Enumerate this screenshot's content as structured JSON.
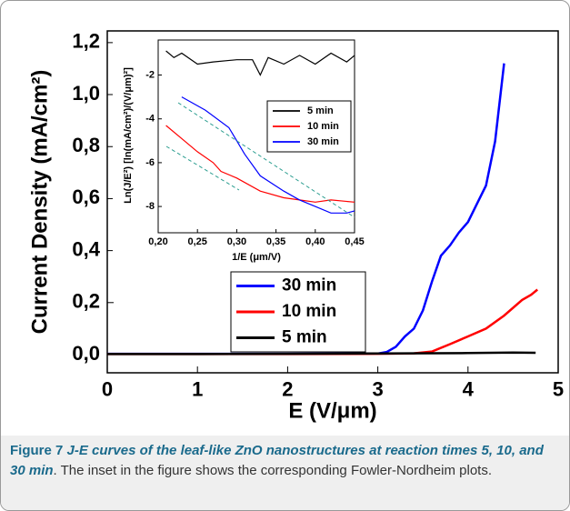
{
  "chart_data": [
    {
      "type": "line",
      "x_label": "E (V/μm)",
      "y_label": "Current Density (mA/cm²)",
      "xlim": [
        0,
        5
      ],
      "xticks": [
        0,
        1,
        2,
        3,
        4,
        5
      ],
      "ylim": [
        -0.07,
        1.245
      ],
      "yticks": [
        {
          "value": 0,
          "label": "0,0"
        },
        {
          "value": 0.2,
          "label": "0,2"
        },
        {
          "value": 0.4,
          "label": "0,4"
        },
        {
          "value": 0.6,
          "label": "0,6"
        },
        {
          "value": 0.8,
          "label": "0,8"
        },
        {
          "value": 1.0,
          "label": "1,0"
        },
        {
          "value": 1.2,
          "label": "1,2"
        }
      ],
      "series": [
        {
          "name": "30 min",
          "color": "#0000ff",
          "x": [
            0,
            1,
            2,
            3,
            3.1,
            3.2,
            3.3,
            3.4,
            3.5,
            3.6,
            3.7,
            3.8,
            3.9,
            4.0,
            4.1,
            4.2,
            4.3,
            4.4
          ],
          "values": [
            0.003,
            0.003,
            0.003,
            0.004,
            0.01,
            0.03,
            0.07,
            0.1,
            0.17,
            0.28,
            0.38,
            0.42,
            0.47,
            0.51,
            0.58,
            0.65,
            0.82,
            1.12
          ]
        },
        {
          "name": "10 min",
          "color": "#ff0000",
          "x": [
            0,
            1,
            2,
            3,
            3.4,
            3.6,
            3.8,
            4.0,
            4.2,
            4.4,
            4.6,
            4.7,
            4.77
          ],
          "values": [
            0.002,
            0.002,
            0.002,
            0.003,
            0.005,
            0.012,
            0.04,
            0.07,
            0.1,
            0.15,
            0.21,
            0.23,
            0.25
          ]
        },
        {
          "name": "5 min",
          "color": "#000000",
          "x": [
            0,
            1,
            2,
            3,
            4,
            4.5,
            4.75
          ],
          "values": [
            0.002,
            0.002,
            0.003,
            0.004,
            0.006,
            0.008,
            0.007
          ]
        }
      ]
    },
    {
      "type": "line",
      "x_label": "1/E (μm/V)",
      "y_label": "Ln(J/E²) [ln(mA/cm²)/(V/μm)²]",
      "xlim": [
        0.2,
        0.45
      ],
      "xticks": [
        {
          "value": 0.2,
          "label": "0,20"
        },
        {
          "value": 0.25,
          "label": "0,25"
        },
        {
          "value": 0.3,
          "label": "0,30"
        },
        {
          "value": 0.35,
          "label": "0,35"
        },
        {
          "value": 0.4,
          "label": "0,40"
        },
        {
          "value": 0.45,
          "label": "0,45"
        }
      ],
      "ylim": [
        -9.2,
        -0.4
      ],
      "yticks": [
        -8,
        -6,
        -4,
        -2
      ],
      "series": [
        {
          "name": "5 min",
          "color": "#000000",
          "x": [
            0.21,
            0.22,
            0.23,
            0.25,
            0.27,
            0.3,
            0.32,
            0.33,
            0.34,
            0.36,
            0.38,
            0.4,
            0.42,
            0.44,
            0.45
          ],
          "values": [
            -0.9,
            -1.2,
            -1.0,
            -1.5,
            -1.4,
            -1.3,
            -1.3,
            -2.0,
            -1.2,
            -1.5,
            -1.1,
            -1.5,
            -1.0,
            -1.4,
            -1.1
          ]
        },
        {
          "name": "10 min",
          "color": "#ff0000",
          "x": [
            0.21,
            0.23,
            0.25,
            0.27,
            0.28,
            0.3,
            0.33,
            0.36,
            0.38,
            0.4,
            0.42,
            0.45
          ],
          "values": [
            -4.3,
            -4.9,
            -5.5,
            -6.0,
            -6.4,
            -6.7,
            -7.3,
            -7.6,
            -7.7,
            -7.8,
            -7.7,
            -7.8
          ]
        },
        {
          "name": "30 min",
          "color": "#0000ff",
          "x": [
            0.23,
            0.26,
            0.29,
            0.3,
            0.31,
            0.33,
            0.36,
            0.38,
            0.4,
            0.42,
            0.44,
            0.45
          ],
          "values": [
            -3.0,
            -3.6,
            -4.4,
            -5.0,
            -5.6,
            -6.6,
            -7.3,
            -7.7,
            -8.0,
            -8.3,
            -8.3,
            -8.2
          ]
        }
      ]
    }
  ],
  "caption": {
    "label": "Figure 7",
    "title": "J-E curves of the leaf-like ZnO nanostructures at reaction times 5, 10, and 30 min",
    "text": ". The inset in the figure shows the corresponding Fowler-Nordheim plots."
  }
}
